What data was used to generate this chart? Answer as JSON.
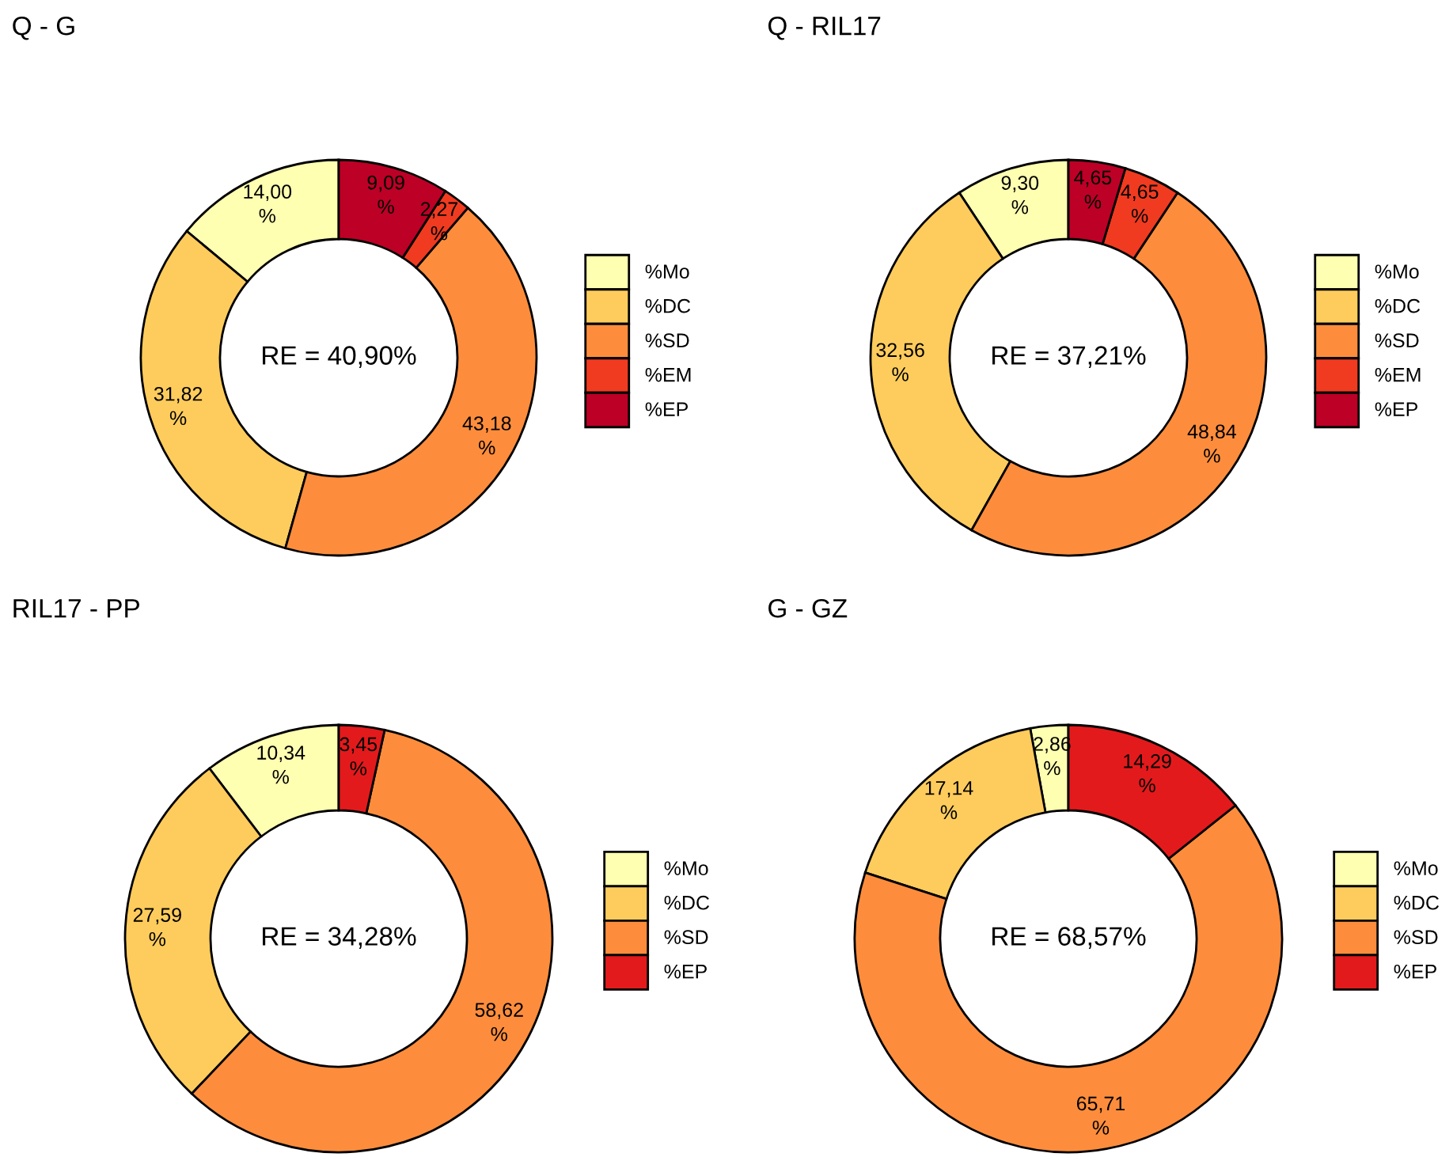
{
  "chart_data": [
    {
      "type": "donut",
      "title": "Q - G",
      "categories": [
        "%Mo",
        "%DC",
        "%SD",
        "%EM",
        "%EP"
      ],
      "values": [
        14.0,
        31.82,
        43.18,
        2.27,
        9.09
      ],
      "colors": [
        "#ffffb2",
        "#fecc5c",
        "#fd8d3c",
        "#f03b20",
        "#bd0026"
      ],
      "value_labels": [
        "14,00\n%",
        "31,82\n%",
        "43,18\n%",
        "2,27\n%",
        "9,09\n%"
      ],
      "annotations": [
        "RE = 40,90%"
      ],
      "legend": "right"
    },
    {
      "type": "donut",
      "title": "Q - RIL17",
      "categories": [
        "%Mo",
        "%DC",
        "%SD",
        "%EM",
        "%EP"
      ],
      "values": [
        9.3,
        32.56,
        48.84,
        4.65,
        4.65
      ],
      "colors": [
        "#ffffb2",
        "#fecc5c",
        "#fd8d3c",
        "#f03b20",
        "#bd0026"
      ],
      "value_labels": [
        "9,30\n%",
        "32,56\n%",
        "48,84\n%",
        "4,65\n%",
        "4,65\n%"
      ],
      "annotations": [
        "RE = 37,21%"
      ],
      "legend": "right"
    },
    {
      "type": "donut",
      "title": "RIL17 - PP",
      "categories": [
        "%Mo",
        "%DC",
        "%SD",
        "%EP"
      ],
      "values": [
        10.34,
        27.59,
        58.62,
        3.45
      ],
      "colors": [
        "#ffffb2",
        "#fecc5c",
        "#fd8d3c",
        "#e31a1c"
      ],
      "value_labels": [
        "10,34\n%",
        "27,59\n%",
        "58,62\n%",
        "3,45\n%"
      ],
      "annotations": [
        "RE = 34,28%"
      ],
      "legend": "right"
    },
    {
      "type": "donut",
      "title": "G - GZ",
      "categories": [
        "%Mo",
        "%DC",
        "%SD",
        "%EP"
      ],
      "values": [
        2.86,
        17.14,
        65.71,
        14.29
      ],
      "colors": [
        "#ffffb2",
        "#fecc5c",
        "#fd8d3c",
        "#e31a1c"
      ],
      "value_labels": [
        "2,86\n%",
        "17,14\n%",
        "65,71\n%",
        "14,29\n%"
      ],
      "annotations": [
        "RE = 68,57%"
      ],
      "legend": "right"
    }
  ]
}
